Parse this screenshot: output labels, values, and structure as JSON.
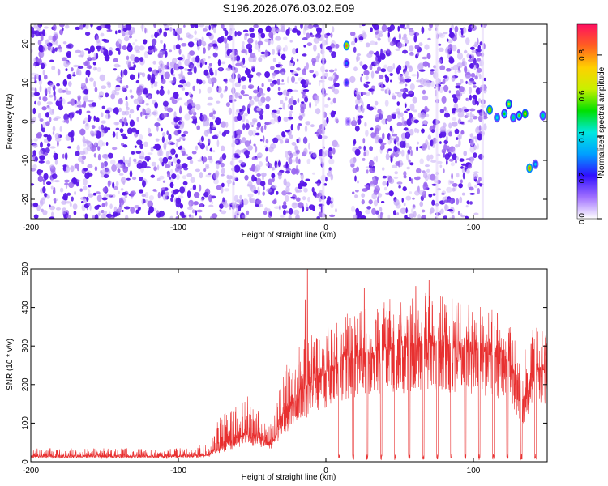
{
  "title": "S196.2026.076.03.02.E09",
  "colors": {
    "snr_line": "#e83030",
    "spectrogram_dots": "#7b2ee6",
    "colormap": [
      "#ffffff",
      "#a070ff",
      "#3010ff",
      "#00a0ff",
      "#00e8e0",
      "#00e000",
      "#c8f000",
      "#ffd000",
      "#ff6020",
      "#ff1060"
    ]
  },
  "chart_data": [
    {
      "id": "spectrogram",
      "type": "heatmap",
      "xlabel": "Height of straight line (km)",
      "ylabel": "Frequency (Hz)",
      "xlim": [
        -200,
        150
      ],
      "ylim": [
        -25,
        25
      ],
      "xticks": [
        {
          "value": -200,
          "label": "-200"
        },
        {
          "value": -100,
          "label": "-100"
        },
        {
          "value": 0,
          "label": "0"
        },
        {
          "value": 100,
          "label": "100"
        }
      ],
      "yticks": [
        {
          "value": 20,
          "label": "20"
        },
        {
          "value": 10,
          "label": "10"
        },
        {
          "value": 0,
          "label": "0"
        },
        {
          "value": -10,
          "label": "-10"
        },
        {
          "value": -20,
          "label": "-20"
        }
      ],
      "noise_extent_km": [
        -200,
        108
      ],
      "blank_gap_km": [
        8,
        18
      ],
      "strong_features": [
        {
          "x": 14,
          "y": 19.5,
          "amp": 0.9
        },
        {
          "x": 14,
          "y": 15,
          "amp": 0.3
        },
        {
          "x": 14,
          "y": 10,
          "amp": 0.25
        },
        {
          "x": 15,
          "y": 0,
          "amp": 0.15
        },
        {
          "x": 111,
          "y": 3,
          "amp": 0.85
        },
        {
          "x": 116,
          "y": 1,
          "amp": 0.45
        },
        {
          "x": 121,
          "y": 2,
          "amp": 0.55
        },
        {
          "x": 124,
          "y": 4.5,
          "amp": 0.7
        },
        {
          "x": 127,
          "y": 1,
          "amp": 0.5
        },
        {
          "x": 131,
          "y": 1.5,
          "amp": 0.6
        },
        {
          "x": 135,
          "y": 2,
          "amp": 0.8
        },
        {
          "x": 138,
          "y": -12,
          "amp": 0.9
        },
        {
          "x": 142,
          "y": -11,
          "amp": 0.4
        },
        {
          "x": 147,
          "y": 1.5,
          "amp": 0.5
        }
      ],
      "colorbar": {
        "label": "Normalized spectral amplitude",
        "range": [
          0.0,
          0.95
        ],
        "ticks": [
          {
            "value": 0.0,
            "label": "0.0"
          },
          {
            "value": 0.2,
            "label": "0.2"
          },
          {
            "value": 0.4,
            "label": "0.4"
          },
          {
            "value": 0.6,
            "label": "0.6"
          },
          {
            "value": 0.8,
            "label": "0.8"
          }
        ]
      }
    },
    {
      "id": "snr",
      "type": "line",
      "xlabel": "Height of straight line (km)",
      "ylabel": "SNR (10 * v/v)",
      "xlim": [
        -200,
        150
      ],
      "ylim": [
        0,
        500
      ],
      "xticks": [
        {
          "value": -200,
          "label": "-200"
        },
        {
          "value": -100,
          "label": "-100"
        },
        {
          "value": 0,
          "label": "0"
        },
        {
          "value": 100,
          "label": "100"
        }
      ],
      "yticks": [
        {
          "value": 0,
          "label": "0"
        },
        {
          "value": 100,
          "label": "100"
        },
        {
          "value": 200,
          "label": "200"
        },
        {
          "value": 300,
          "label": "300"
        },
        {
          "value": 400,
          "label": "400"
        },
        {
          "value": 500,
          "label": "500"
        }
      ],
      "envelope": [
        {
          "x": -200,
          "base": 12,
          "peak": 35
        },
        {
          "x": -100,
          "base": 12,
          "peak": 35
        },
        {
          "x": -80,
          "base": 15,
          "peak": 45
        },
        {
          "x": -70,
          "base": 40,
          "peak": 140
        },
        {
          "x": -55,
          "base": 70,
          "peak": 180
        },
        {
          "x": -45,
          "base": 60,
          "peak": 130
        },
        {
          "x": -37,
          "base": 40,
          "peak": 100
        },
        {
          "x": -30,
          "base": 110,
          "peak": 230
        },
        {
          "x": -22,
          "base": 150,
          "peak": 280
        },
        {
          "x": -10,
          "base": 200,
          "peak": 340
        },
        {
          "x": 10,
          "base": 260,
          "peak": 380
        },
        {
          "x": 40,
          "base": 290,
          "peak": 420
        },
        {
          "x": 70,
          "base": 300,
          "peak": 440
        },
        {
          "x": 100,
          "base": 290,
          "peak": 410
        },
        {
          "x": 125,
          "base": 260,
          "peak": 380
        },
        {
          "x": 132,
          "base": 140,
          "peak": 250
        },
        {
          "x": 140,
          "base": 230,
          "peak": 360
        },
        {
          "x": 150,
          "base": 240,
          "peak": 330
        }
      ],
      "dropouts_km": [
        9,
        18.5,
        28,
        37.5,
        47,
        56.5,
        66,
        75.5,
        85,
        94.5,
        104,
        113.5,
        123,
        132.5,
        142
      ],
      "peaks": [
        {
          "x": -12.5,
          "y": 500
        },
        {
          "x": -14,
          "y": 420
        },
        {
          "x": -8,
          "y": 310
        },
        {
          "x": 70,
          "y": 470
        },
        {
          "x": 61,
          "y": 455
        },
        {
          "x": 26,
          "y": 450
        }
      ]
    }
  ]
}
